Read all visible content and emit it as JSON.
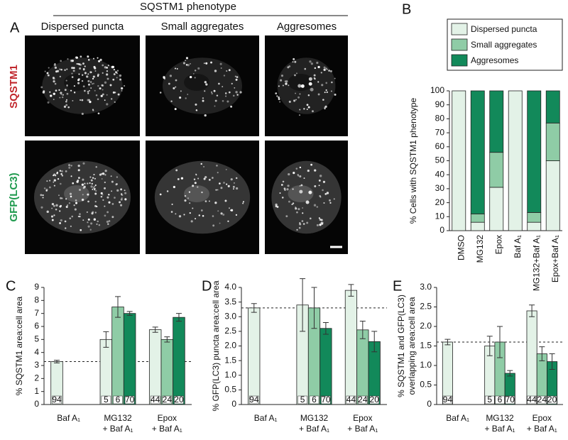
{
  "panel_labels": [
    "A",
    "B",
    "C",
    "D",
    "E"
  ],
  "panel_a": {
    "title": "SQSTM1 phenotype",
    "columns": [
      "Dispersed puncta",
      "Small aggregates",
      "Aggresomes"
    ],
    "rows": [
      "SQSTM1",
      "GFP(LC3)"
    ]
  },
  "chart_data": [
    {
      "type": "bar",
      "stacked": true,
      "ylabel": [
        "% Cells with SQSTM1 phenotype"
      ],
      "categories": [
        [
          "DMSO"
        ],
        [
          "MG132"
        ],
        [
          "Epox"
        ],
        [
          "Baf A₁"
        ],
        [
          "MG132+Baf A₁"
        ],
        [
          "Epox+Baf A₁"
        ]
      ],
      "ylim": [
        0,
        100
      ],
      "yticks": [
        0,
        10,
        20,
        30,
        40,
        50,
        60,
        70,
        80,
        90,
        100
      ],
      "series": [
        {
          "name": "Dispersed puncta",
          "color": "#e3f2e7",
          "values": [
            100,
            6,
            31,
            100,
            6,
            50
          ]
        },
        {
          "name": "Small aggregates",
          "color": "#8fcca6",
          "values": [
            0,
            6,
            25,
            0,
            7,
            27
          ]
        },
        {
          "name": "Aggresomes",
          "color": "#12895a",
          "values": [
            0,
            88,
            44,
            0,
            87,
            23
          ]
        }
      ]
    },
    {
      "type": "bar",
      "ylabel": [
        "% SQSTM1 area:cell area"
      ],
      "categories": [
        [
          "Baf A₁"
        ],
        [
          "MG132",
          "+ Baf A₁"
        ],
        [
          "Epox",
          "+ Baf A₁"
        ]
      ],
      "ylim": [
        0,
        9
      ],
      "yticks": [
        0,
        1,
        2,
        3,
        4,
        5,
        6,
        7,
        8,
        9
      ],
      "hline": 3.3,
      "series": [
        {
          "color": "#e3f2e7",
          "values": [
            3.3,
            5.0,
            5.75
          ],
          "errors": [
            0.1,
            0.6,
            0.2
          ],
          "n": [
            94,
            5,
            44
          ]
        },
        {
          "color": "#8fcca6",
          "values": [
            null,
            7.5,
            5.0
          ],
          "errors": [
            null,
            0.8,
            0.2
          ],
          "n": [
            null,
            6,
            24
          ]
        },
        {
          "color": "#12895a",
          "values": [
            null,
            7.0,
            6.7
          ],
          "errors": [
            null,
            0.15,
            0.3
          ],
          "n": [
            null,
            70,
            20
          ]
        }
      ]
    },
    {
      "type": "bar",
      "ylabel": [
        "% GFP(LC3) puncta area:cell area"
      ],
      "categories": [
        [
          "Baf A₁"
        ],
        [
          "MG132",
          "+ Baf A₁"
        ],
        [
          "Epox",
          "+ Baf A₁"
        ]
      ],
      "ylim": [
        0,
        4
      ],
      "yticks": [
        0,
        0.5,
        {
          "value": 1,
          "label": "1.0"
        },
        1.5,
        {
          "value": 2,
          "label": "2.0"
        },
        2.5,
        {
          "value": 3,
          "label": "3.0"
        },
        3.5,
        {
          "value": 4,
          "label": "4.0"
        }
      ],
      "hline": 3.3,
      "series": [
        {
          "color": "#e3f2e7",
          "values": [
            3.3,
            3.4,
            3.9
          ],
          "errors": [
            0.15,
            0.9,
            0.2
          ],
          "n": [
            94,
            5,
            44
          ]
        },
        {
          "color": "#8fcca6",
          "values": [
            null,
            3.3,
            2.55
          ],
          "errors": [
            null,
            0.7,
            0.3
          ],
          "n": [
            null,
            6,
            24
          ]
        },
        {
          "color": "#12895a",
          "values": [
            null,
            2.6,
            2.15
          ],
          "errors": [
            null,
            0.2,
            0.35
          ],
          "n": [
            null,
            70,
            20
          ]
        }
      ]
    },
    {
      "type": "bar",
      "ylabel": [
        "% SQSTM1 and GFP(LC3)",
        "overlapping area:cell area"
      ],
      "categories": [
        [
          "Baf A₁"
        ],
        [
          "MG132",
          "+ Baf A₁"
        ],
        [
          "Epox",
          "+ Baf A₁"
        ]
      ],
      "ylim": [
        0,
        3
      ],
      "yticks": [
        0,
        0.5,
        {
          "value": 1,
          "label": "1.0"
        },
        1.5,
        {
          "value": 2,
          "label": "2.0"
        },
        2.5,
        {
          "value": 3,
          "label": "3.0"
        }
      ],
      "hline": 1.6,
      "series": [
        {
          "color": "#e3f2e7",
          "values": [
            1.6,
            1.5,
            2.4
          ],
          "errors": [
            0.07,
            0.25,
            0.15
          ],
          "n": [
            94,
            5,
            44
          ]
        },
        {
          "color": "#8fcca6",
          "values": [
            null,
            1.6,
            1.3
          ],
          "errors": [
            null,
            0.4,
            0.18
          ],
          "n": [
            null,
            6,
            24
          ]
        },
        {
          "color": "#12895a",
          "values": [
            null,
            0.8,
            1.1
          ],
          "errors": [
            null,
            0.07,
            0.2
          ],
          "n": [
            null,
            70,
            20
          ]
        }
      ]
    }
  ]
}
